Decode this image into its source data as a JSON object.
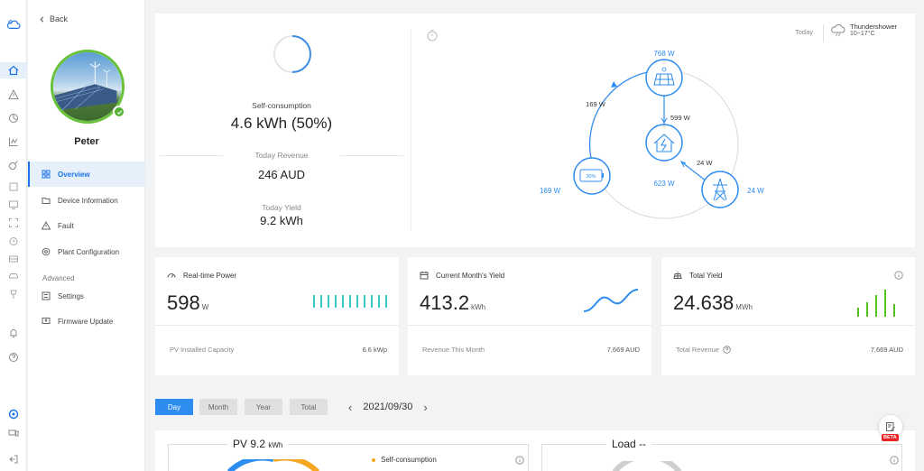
{
  "sidebar": {
    "back_label": "Back",
    "user_name": "Peter",
    "items": [
      {
        "label": "Overview"
      },
      {
        "label": "Device Information"
      },
      {
        "label": "Fault"
      },
      {
        "label": "Plant Configuration"
      }
    ],
    "advanced_label": "Advanced",
    "advanced_items": [
      {
        "label": "Settings"
      },
      {
        "label": "Firmware Update"
      }
    ]
  },
  "summary": {
    "self_consumption_label": "Self-consumption",
    "self_consumption_value": "4.6 kWh (50%)",
    "self_consumption_fraction": 0.5,
    "revenue_label": "Today Revenue",
    "revenue_value": "246 AUD",
    "yield_label": "Today Yield",
    "yield_value": "9.2 kWh"
  },
  "weather": {
    "today_label": "Today",
    "condition": "Thundershower",
    "temperature": "10~17°C"
  },
  "flow": {
    "pv": "768 W",
    "pv_to_battery": "169 W",
    "pv_to_home": "599 W",
    "grid_to_home": "24 W",
    "home": "623 W",
    "battery": "169 W",
    "battery_soc": "30%",
    "grid": "24 W",
    "color": "#2d8cf0"
  },
  "stats": {
    "realtime": {
      "title": "Real-time Power",
      "value": "598",
      "unit": "W",
      "footer_label": "PV Installed Capacity",
      "footer_value": "6.6 kWp"
    },
    "month": {
      "title": "Current Month's Yield",
      "value": "413.2",
      "unit": "kWh",
      "footer_label": "Revenue This Month",
      "footer_value": "7,669 AUD"
    },
    "total": {
      "title": "Total Yield",
      "value": "24.638",
      "unit": "MWh",
      "footer_label": "Total Revenue",
      "footer_value": "7,669 AUD"
    }
  },
  "period": {
    "tabs": [
      {
        "label": "Day"
      },
      {
        "label": "Month"
      },
      {
        "label": "Year"
      },
      {
        "label": "Total"
      }
    ],
    "date": "2021/09/30"
  },
  "bottom": {
    "pv_title": "PV 9.2",
    "pv_unit": "kWh",
    "legend_self": "Self-consumption",
    "load_title": "Load --"
  },
  "beta_label": "BETA"
}
